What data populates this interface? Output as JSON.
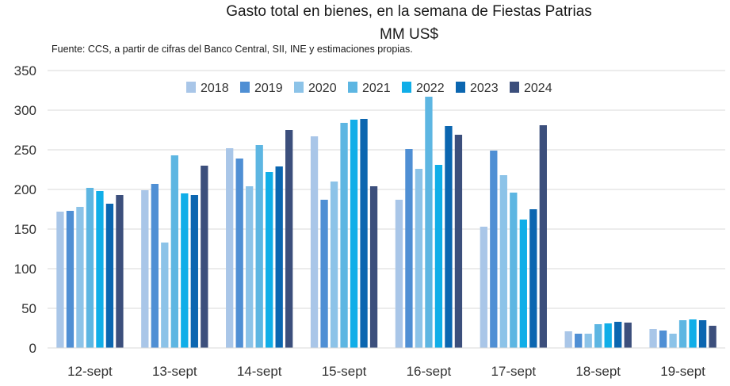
{
  "chart_data": {
    "type": "bar",
    "title": "Gasto total en bienes, en la semana de Fiestas Patrias",
    "subtitle": "MM US$",
    "source": "Fuente: CCS, a partir de cifras del Banco Central, SII, INE y estimaciones propias.",
    "categories": [
      "12-sept",
      "13-sept",
      "14-sept",
      "15-sept",
      "16-sept",
      "17-sept",
      "18-sept",
      "19-sept"
    ],
    "ylim": [
      0,
      350
    ],
    "yticks": [
      0,
      50,
      100,
      150,
      200,
      250,
      300,
      350
    ],
    "grid": true,
    "legend_position": "top-center",
    "series": [
      {
        "name": "2018",
        "color": "#a9c6e8",
        "values": [
          172,
          199,
          252,
          267,
          187,
          153,
          21,
          24
        ]
      },
      {
        "name": "2019",
        "color": "#4f8fd4",
        "values": [
          173,
          207,
          239,
          187,
          251,
          249,
          18,
          22
        ]
      },
      {
        "name": "2020",
        "color": "#8cc3e8",
        "values": [
          178,
          133,
          204,
          210,
          226,
          218,
          18,
          18
        ]
      },
      {
        "name": "2021",
        "color": "#5db6e2",
        "values": [
          202,
          243,
          256,
          284,
          317,
          196,
          30,
          35
        ]
      },
      {
        "name": "2022",
        "color": "#10aee8",
        "values": [
          198,
          195,
          222,
          288,
          231,
          162,
          31,
          36
        ]
      },
      {
        "name": "2023",
        "color": "#0b66b0",
        "values": [
          182,
          193,
          229,
          289,
          280,
          175,
          33,
          35
        ]
      },
      {
        "name": "2024",
        "color": "#3c4f7c",
        "values": [
          193,
          230,
          275,
          204,
          269,
          281,
          32,
          28
        ]
      }
    ]
  }
}
